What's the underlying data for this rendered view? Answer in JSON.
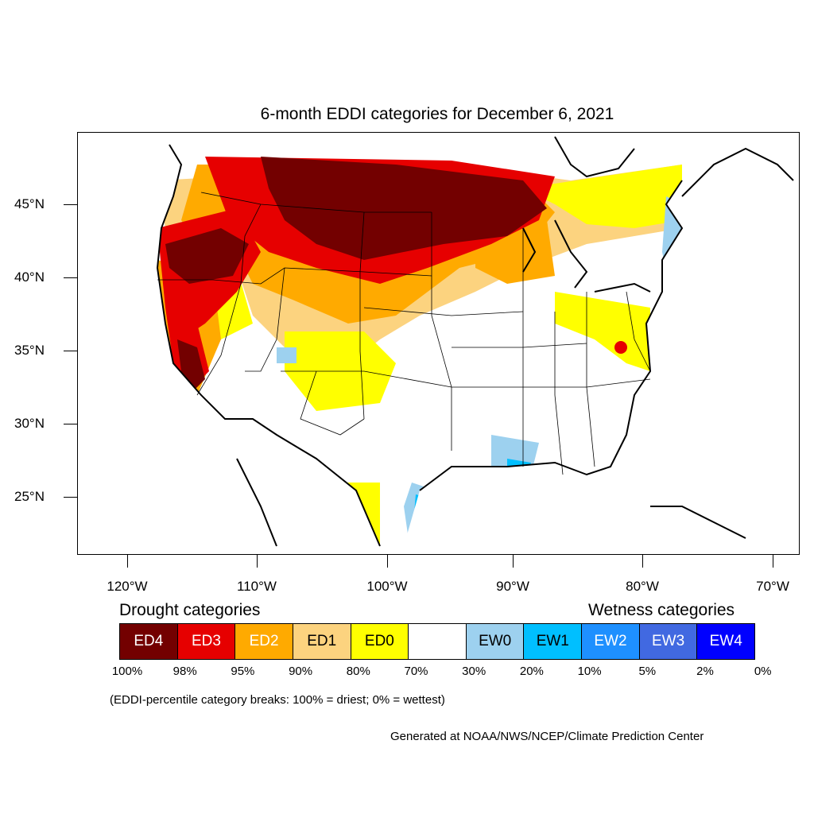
{
  "title": "6-month EDDI categories for December 6, 2021",
  "lat_labels": [
    "45°N",
    "40°N",
    "35°N",
    "30°N",
    "25°N"
  ],
  "lon_labels": [
    "120°W",
    "110°W",
    "100°W",
    "90°W",
    "80°W",
    "70°W"
  ],
  "legend": {
    "drought_heading": "Drought categories",
    "wetness_heading": "Wetness categories",
    "categories": [
      {
        "label": "ED4",
        "color": "#730000",
        "text_color": "#ffffff"
      },
      {
        "label": "ED3",
        "color": "#e60000",
        "text_color": "#ffffff"
      },
      {
        "label": "ED2",
        "color": "#ffaa00",
        "text_color": "#ffffff"
      },
      {
        "label": "ED1",
        "color": "#fcd37f",
        "text_color": "#000000"
      },
      {
        "label": "ED0",
        "color": "#ffff00",
        "text_color": "#000000"
      },
      {
        "label": "",
        "color": "#ffffff",
        "text_color": "#000000"
      },
      {
        "label": "EW0",
        "color": "#9dd1ef",
        "text_color": "#000000"
      },
      {
        "label": "EW1",
        "color": "#00bfff",
        "text_color": "#000000"
      },
      {
        "label": "EW2",
        "color": "#1e90ff",
        "text_color": "#ffffff"
      },
      {
        "label": "EW3",
        "color": "#4169e1",
        "text_color": "#ffffff"
      },
      {
        "label": "EW4",
        "color": "#0000ff",
        "text_color": "#ffffff"
      }
    ],
    "breaks": [
      "100%",
      "98%",
      "95%",
      "90%",
      "80%",
      "70%",
      "30%",
      "20%",
      "10%",
      "5%",
      "2%",
      "0%"
    ]
  },
  "note": "(EDDI-percentile category breaks: 100% = driest; 0% = wettest)",
  "credit": "Generated at NOAA/NWS/NCEP/Climate Prediction Center",
  "map_colors": {
    "ED4": "#730000",
    "ED3": "#e60000",
    "ED2": "#ffaa00",
    "ED1": "#fcd37f",
    "ED0": "#ffff00",
    "EW0": "#9dd1ef",
    "EW1": "#00bfff",
    "EW2": "#1e90ff"
  }
}
